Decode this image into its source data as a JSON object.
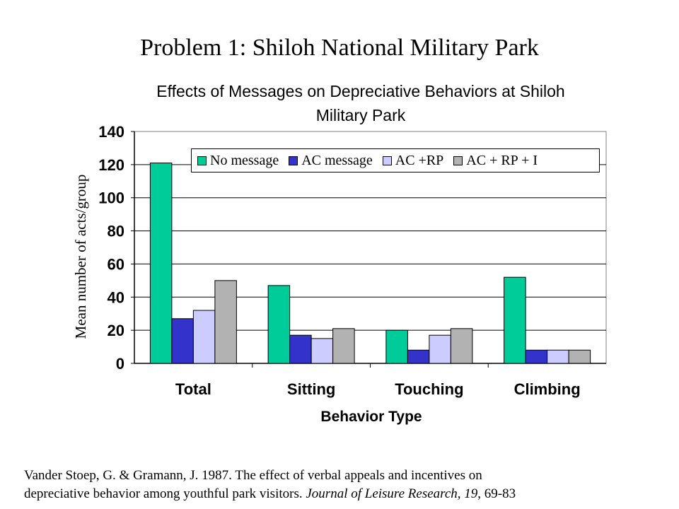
{
  "slide_title": "Problem 1: Shiloh National Military Park",
  "chart_data": {
    "type": "bar",
    "title_line1": "Effects of Messages on Depreciative Behaviors at Shiloh",
    "title_line2": "Military Park",
    "xlabel": "Behavior Type",
    "ylabel": "Mean number of acts/group",
    "ylim": [
      0,
      140
    ],
    "yticks": [
      0,
      20,
      40,
      60,
      80,
      100,
      120,
      140
    ],
    "grid": true,
    "legend_position": "top-right",
    "categories": [
      "Total",
      "Sitting",
      "Touching",
      "Climbing"
    ],
    "series": [
      {
        "name": "No message",
        "color": "#00cc99",
        "values": [
          121,
          47,
          20,
          52
        ]
      },
      {
        "name": "AC message",
        "color": "#3333cc",
        "values": [
          27,
          17,
          8,
          8
        ]
      },
      {
        "name": "AC +RP",
        "color": "#ccccff",
        "values": [
          32,
          15,
          17,
          8
        ]
      },
      {
        "name": "AC + RP + I",
        "color": "#b2b2b2",
        "values": [
          50,
          21,
          21,
          8
        ]
      }
    ]
  },
  "citation": {
    "line1": "Vander Stoep, G. & Gramann, J. 1987. The effect of verbal appeals and incentives on",
    "line2_prefix": "depreciative behavior among youthful park visitors. ",
    "journal": "Journal of Leisure Research, 19",
    "line2_suffix": ", 69-83"
  }
}
